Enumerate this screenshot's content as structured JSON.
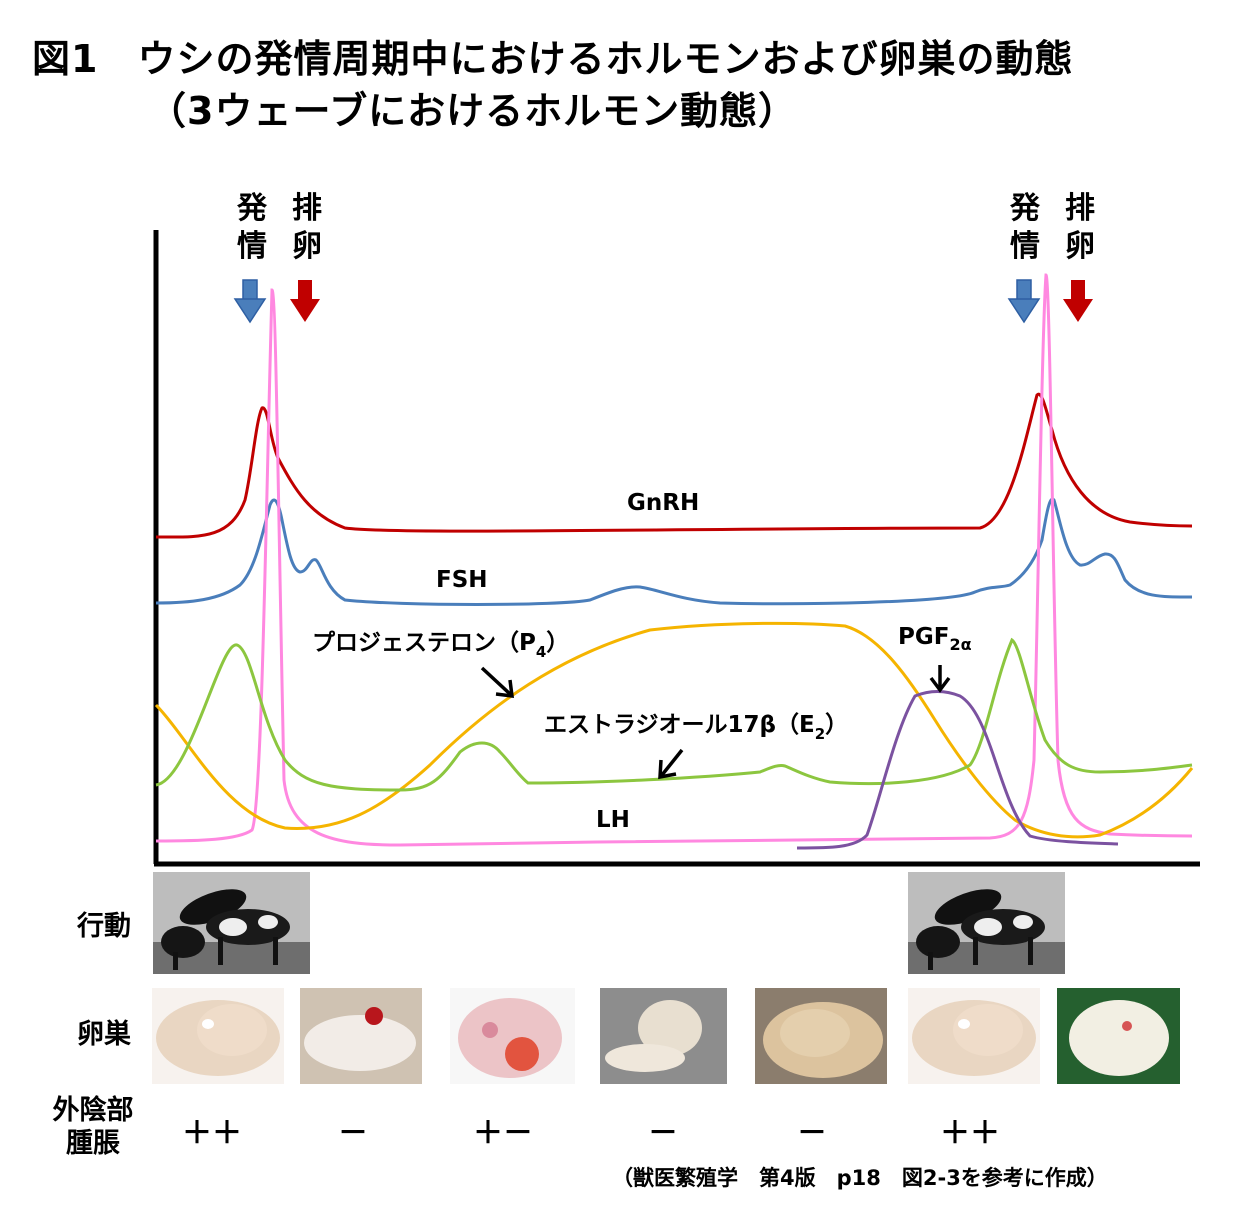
{
  "title": {
    "line1": "図1　ウシの発情周期中におけるホルモンおよび卵巣の動態",
    "line2": "（3ウェーブにおけるホルモン動態）"
  },
  "events": {
    "estrus": "発\n情",
    "ovulation": "排\n卵",
    "estrus_color": "#2e5fa3",
    "ovulation_color": "#c00000"
  },
  "chart_data": {
    "type": "line",
    "title": "",
    "xlabel": "",
    "ylabel": "",
    "series": [
      {
        "name": "GnRH",
        "color": "#c00000"
      },
      {
        "name": "FSH",
        "color": "#4a7ebb"
      },
      {
        "name": "LH",
        "color": "#ff88e0"
      },
      {
        "name": "プロジェステロン（P4）",
        "color": "#f5b400"
      },
      {
        "name": "エストラジオール17β（E2）",
        "color": "#8cc63f"
      },
      {
        "name": "PGF2α",
        "color": "#7b52a0"
      }
    ]
  },
  "labels": {
    "gnrh": "GnRH",
    "fsh": "FSH",
    "lh": "LH",
    "p4": "プロジェステロン（P",
    "p4_sub": "4",
    "p4_close": "）",
    "e2": "エストラジオール17β（E",
    "e2_sub": "2",
    "e2_close": "）",
    "pgf": "PGF",
    "pgf_sub": "2α"
  },
  "rows": {
    "behavior": "行動",
    "ovary": "卵巣",
    "vulva": "外陰部\n腫脹"
  },
  "swelling": [
    "＋＋",
    "－",
    "＋－",
    "－",
    "－",
    "＋＋"
  ],
  "source": "（獣医繁殖学　第4版　p18　図2-3を参考に作成）"
}
